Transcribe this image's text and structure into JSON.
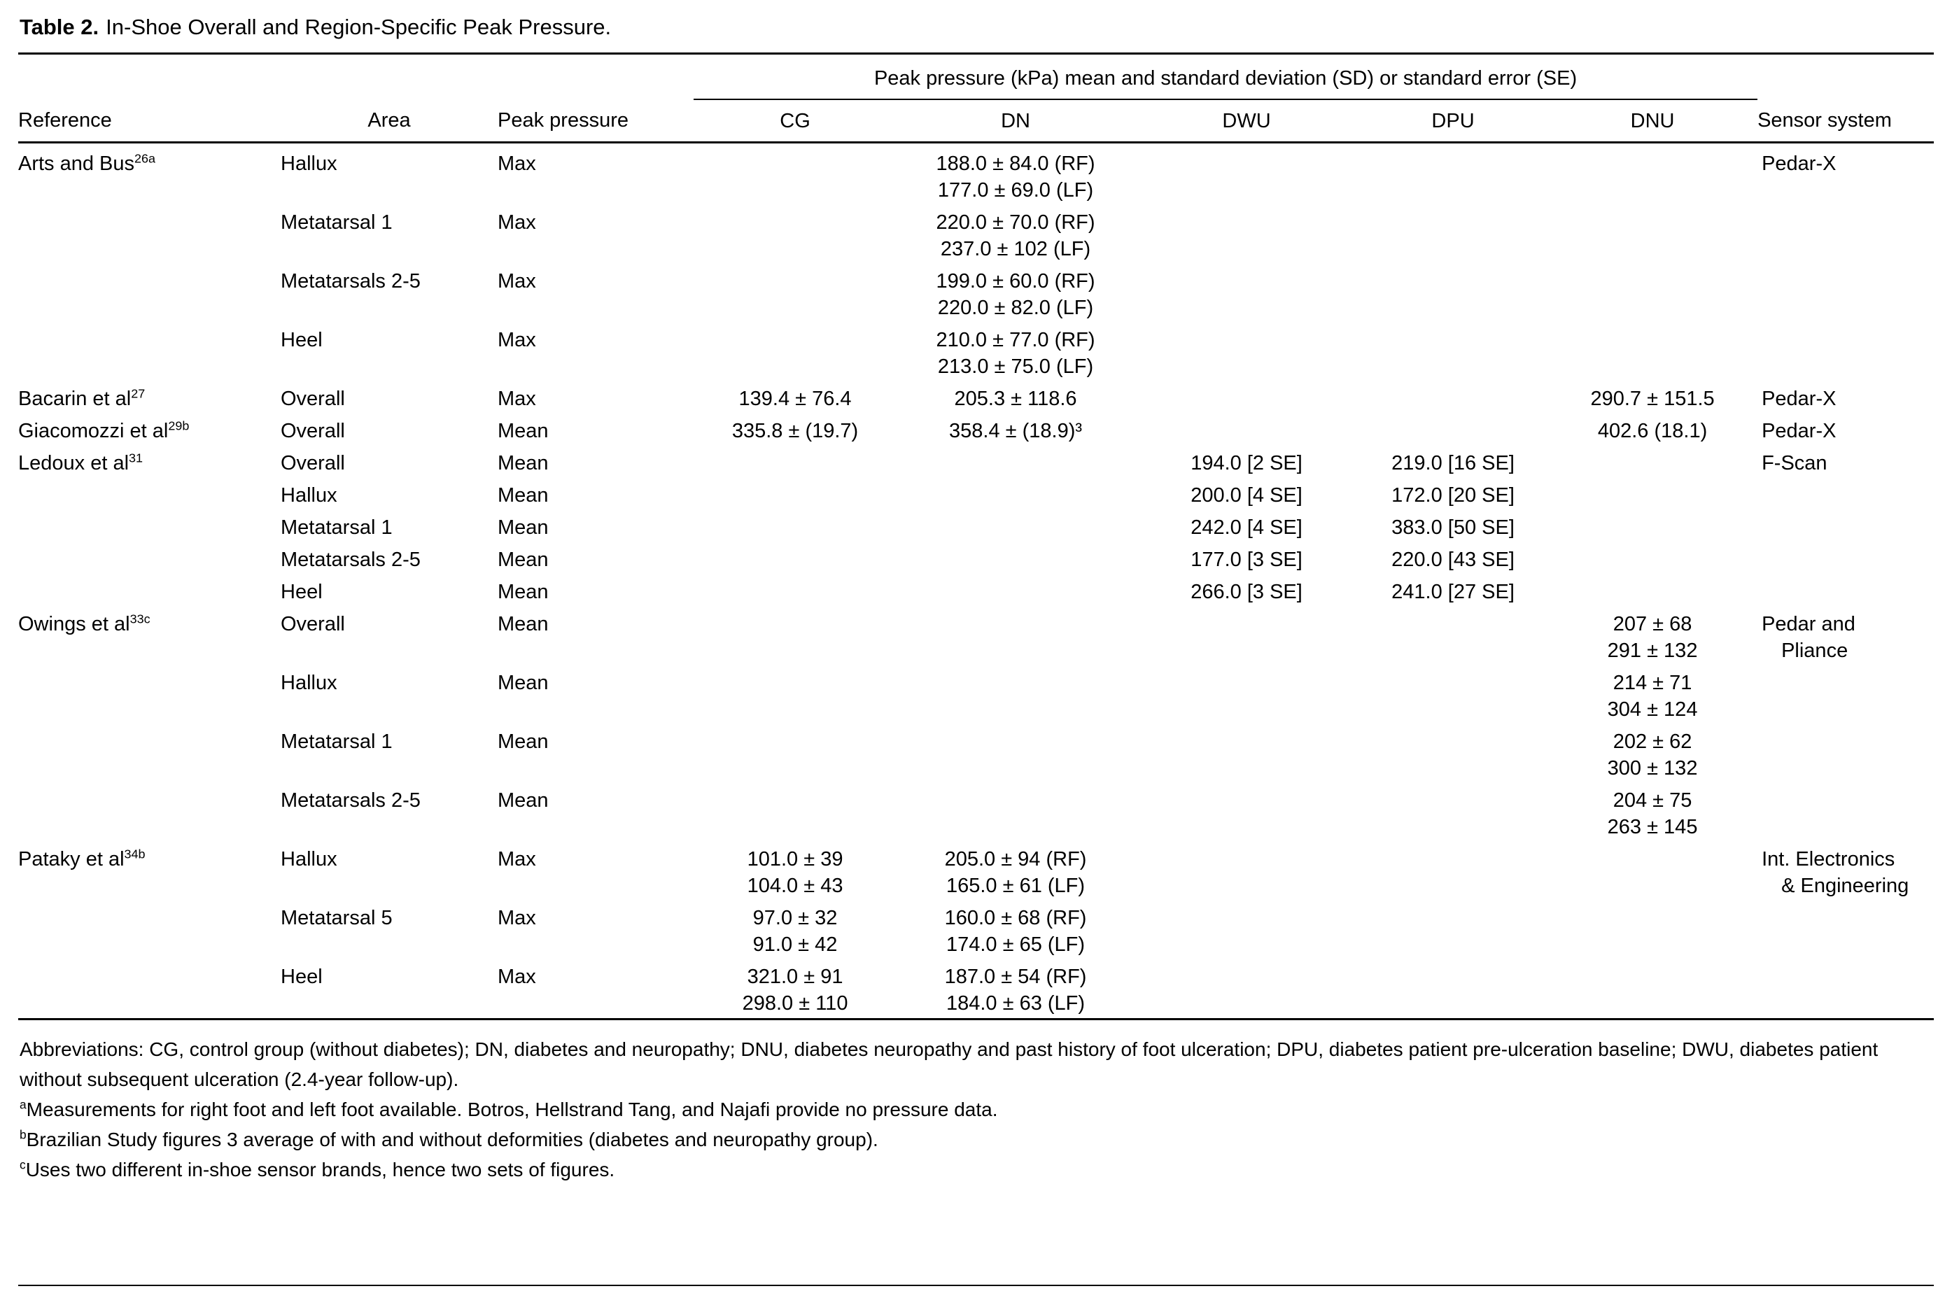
{
  "title": {
    "label": "Table 2.",
    "text": "In-Shoe Overall and Region-Specific Peak Pressure."
  },
  "table": {
    "spanner": "Peak pressure (kPa) mean and standard deviation (SD) or standard error (SE)",
    "columns": [
      "Reference",
      "Area",
      "Peak pressure",
      "CG",
      "DN",
      "DWU",
      "DPU",
      "DNU",
      "Sensor system"
    ],
    "rows": [
      {
        "reference": "Arts and Bus",
        "reference_sup": "26a",
        "area": "Hallux",
        "peak_pressure": "Max",
        "cg": [],
        "dn": [
          "188.0 ± 84.0 (RF)",
          "177.0 ± 69.0 (LF)"
        ],
        "dwu": [],
        "dpu": [],
        "dnu": [],
        "sensor_system": [
          "Pedar-X"
        ]
      },
      {
        "reference": "",
        "reference_sup": "",
        "area": "Metatarsal 1",
        "peak_pressure": "Max",
        "cg": [],
        "dn": [
          "220.0 ± 70.0 (RF)",
          "237.0 ± 102 (LF)"
        ],
        "dwu": [],
        "dpu": [],
        "dnu": [],
        "sensor_system": []
      },
      {
        "reference": "",
        "reference_sup": "",
        "area": "Metatarsals 2-5",
        "peak_pressure": "Max",
        "cg": [],
        "dn": [
          "199.0 ± 60.0 (RF)",
          "220.0 ± 82.0 (LF)"
        ],
        "dwu": [],
        "dpu": [],
        "dnu": [],
        "sensor_system": []
      },
      {
        "reference": "",
        "reference_sup": "",
        "area": "Heel",
        "peak_pressure": "Max",
        "cg": [],
        "dn": [
          "210.0 ± 77.0 (RF)",
          "213.0 ± 75.0 (LF)"
        ],
        "dwu": [],
        "dpu": [],
        "dnu": [],
        "sensor_system": []
      },
      {
        "reference": "Bacarin et al",
        "reference_sup": "27",
        "area": "Overall",
        "peak_pressure": "Max",
        "cg": [
          "139.4 ± 76.4"
        ],
        "dn": [
          "205.3 ± 118.6"
        ],
        "dwu": [],
        "dpu": [],
        "dnu": [
          "290.7 ± 151.5"
        ],
        "sensor_system": [
          "Pedar-X"
        ]
      },
      {
        "reference": "Giacomozzi et al",
        "reference_sup": "29b",
        "area": "Overall",
        "peak_pressure": "Mean",
        "cg": [
          "335.8 ± (19.7)"
        ],
        "dn": [
          "358.4 ± (18.9)³"
        ],
        "dwu": [],
        "dpu": [],
        "dnu": [
          "402.6 (18.1)"
        ],
        "sensor_system": [
          "Pedar-X"
        ]
      },
      {
        "reference": "Ledoux et al",
        "reference_sup": "31",
        "area": "Overall",
        "peak_pressure": "Mean",
        "cg": [],
        "dn": [],
        "dwu": [
          "194.0 [2 SE]"
        ],
        "dpu": [
          "219.0 [16 SE]"
        ],
        "dnu": [],
        "sensor_system": [
          "F-Scan"
        ]
      },
      {
        "reference": "",
        "reference_sup": "",
        "area": "Hallux",
        "peak_pressure": "Mean",
        "cg": [],
        "dn": [],
        "dwu": [
          "200.0 [4 SE]"
        ],
        "dpu": [
          "172.0 [20 SE]"
        ],
        "dnu": [],
        "sensor_system": []
      },
      {
        "reference": "",
        "reference_sup": "",
        "area": "Metatarsal 1",
        "peak_pressure": "Mean",
        "cg": [],
        "dn": [],
        "dwu": [
          "242.0 [4 SE]"
        ],
        "dpu": [
          "383.0 [50 SE]"
        ],
        "dnu": [],
        "sensor_system": []
      },
      {
        "reference": "",
        "reference_sup": "",
        "area": "Metatarsals 2-5",
        "peak_pressure": "Mean",
        "cg": [],
        "dn": [],
        "dwu": [
          "177.0 [3 SE]"
        ],
        "dpu": [
          "220.0 [43 SE]"
        ],
        "dnu": [],
        "sensor_system": []
      },
      {
        "reference": "",
        "reference_sup": "",
        "area": "Heel",
        "peak_pressure": "Mean",
        "cg": [],
        "dn": [],
        "dwu": [
          "266.0 [3 SE]"
        ],
        "dpu": [
          "241.0 [27 SE]"
        ],
        "dnu": [],
        "sensor_system": []
      },
      {
        "reference": "Owings et al",
        "reference_sup": "33c",
        "area": "Overall",
        "peak_pressure": "Mean",
        "cg": [],
        "dn": [],
        "dwu": [],
        "dpu": [],
        "dnu": [
          "207 ± 68",
          "291 ± 132"
        ],
        "sensor_system": [
          "Pedar and",
          "Pliance"
        ]
      },
      {
        "reference": "",
        "reference_sup": "",
        "area": "Hallux",
        "peak_pressure": "Mean",
        "cg": [],
        "dn": [],
        "dwu": [],
        "dpu": [],
        "dnu": [
          "214 ± 71",
          "304 ± 124"
        ],
        "sensor_system": []
      },
      {
        "reference": "",
        "reference_sup": "",
        "area": "Metatarsal 1",
        "peak_pressure": "Mean",
        "cg": [],
        "dn": [],
        "dwu": [],
        "dpu": [],
        "dnu": [
          "202 ± 62",
          "300 ± 132"
        ],
        "sensor_system": []
      },
      {
        "reference": "",
        "reference_sup": "",
        "area": "Metatarsals 2-5",
        "peak_pressure": "Mean",
        "cg": [],
        "dn": [],
        "dwu": [],
        "dpu": [],
        "dnu": [
          "204 ± 75",
          "263 ± 145"
        ],
        "sensor_system": []
      },
      {
        "reference": "Pataky et al",
        "reference_sup": "34b",
        "area": "Hallux",
        "peak_pressure": "Max",
        "cg": [
          "101.0 ± 39",
          "104.0 ± 43"
        ],
        "dn": [
          "205.0 ± 94 (RF)",
          "165.0 ± 61 (LF)"
        ],
        "dwu": [],
        "dpu": [],
        "dnu": [],
        "sensor_system": [
          "Int. Electronics",
          "& Engineering"
        ]
      },
      {
        "reference": "",
        "reference_sup": "",
        "area": "Metatarsal 5",
        "peak_pressure": "Max",
        "cg": [
          "97.0 ± 32",
          "91.0 ± 42"
        ],
        "dn": [
          "160.0 ± 68 (RF)",
          "174.0 ± 65 (LF)"
        ],
        "dwu": [],
        "dpu": [],
        "dnu": [],
        "sensor_system": []
      },
      {
        "reference": "",
        "reference_sup": "",
        "area": "Heel",
        "peak_pressure": "Max",
        "cg": [
          "321.0 ± 91",
          "298.0 ± 110"
        ],
        "dn": [
          "187.0 ± 54 (RF)",
          "184.0 ± 63 (LF)"
        ],
        "dwu": [],
        "dpu": [],
        "dnu": [],
        "sensor_system": []
      }
    ]
  },
  "footnotes": [
    {
      "sup": "",
      "text": "Abbreviations: CG, control group (without diabetes); DN, diabetes and neuropathy; DNU, diabetes neuropathy and past history of foot ulceration; DPU, diabetes patient pre-ulceration baseline; DWU, diabetes patient without subsequent ulceration (2.4-year follow-up)."
    },
    {
      "sup": "a",
      "text": "Measurements for right foot and left foot available. Botros, Hellstrand Tang, and Najafi provide no pressure data."
    },
    {
      "sup": "b",
      "text": "Brazilian Study figures 3 average of with and without deformities (diabetes and neuropathy group)."
    },
    {
      "sup": "c",
      "text": "Uses two different in-shoe sensor brands, hence two sets of figures."
    }
  ]
}
